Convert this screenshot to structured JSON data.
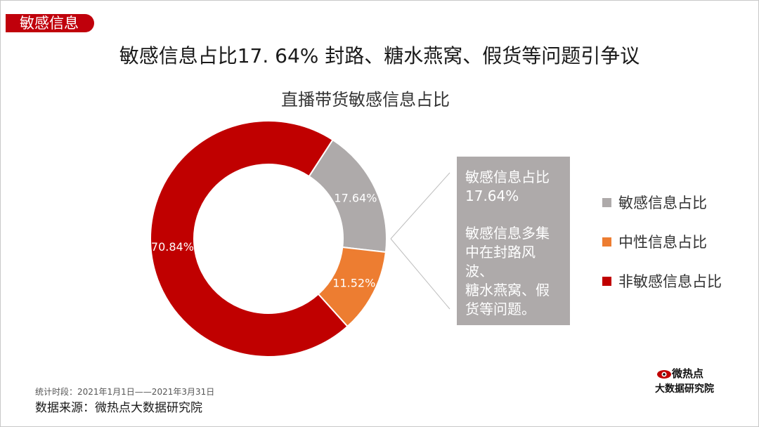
{
  "tag": "敏感信息",
  "headline": "敏感信息占比17. 64%   封路、糖水燕窝、假货等问题引争议",
  "chart_data": {
    "type": "pie",
    "title": "直播带货敏感信息占比",
    "categories": [
      "敏感信息占比",
      "中性信息占比",
      "非敏感信息占比"
    ],
    "values": [
      17.64,
      11.52,
      70.84
    ],
    "data_labels": [
      "17.64%",
      "11.52%",
      "70.84%"
    ],
    "colors": [
      "#aeaaaa",
      "#ed7d31",
      "#c00000"
    ],
    "legend": "right"
  },
  "callout": {
    "line1": "敏感信息占比",
    "line2": "17.64%",
    "line3": "敏感信息多集",
    "line4": "中在封路风波、",
    "line5": "糖水燕窝、假",
    "line6": "货等问题。"
  },
  "footnote": "统计时段：2021年1月1日——2021年3月31日",
  "source": "数据来源：微热点大数据研究院",
  "logo": {
    "top": "微热点",
    "bottom": "大数据研究院"
  }
}
